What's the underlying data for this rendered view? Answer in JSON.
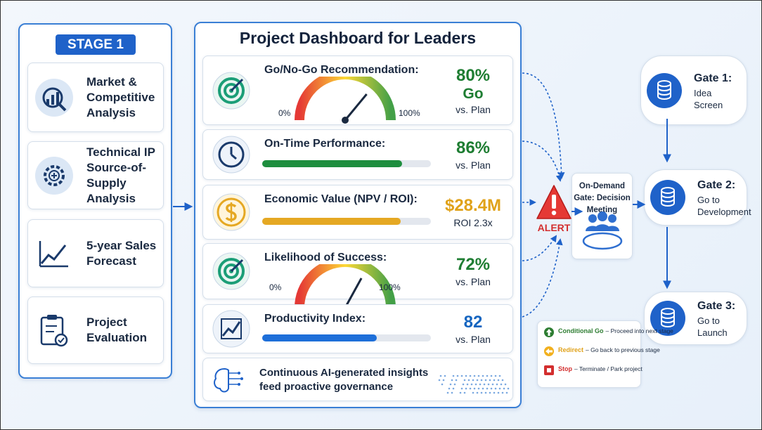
{
  "stage": {
    "badge": "STAGE 1",
    "items": [
      {
        "label": "Market & Competitive Analysis"
      },
      {
        "label": "Technical IP Source-of-Supply Analysis"
      },
      {
        "label": "5-year Sales Forecast"
      },
      {
        "label": "Project Evaluation"
      }
    ]
  },
  "dashboard": {
    "title": "Project Dashboard for Leaders",
    "metrics": [
      {
        "label": "Go/No-Go Recommendation:",
        "value": "80%",
        "status": "Go",
        "note": "vs. Plan",
        "scale_min": "0%",
        "scale_max": "100%"
      },
      {
        "label": "On-Time Performance:",
        "value": "86%",
        "note": "vs. Plan"
      },
      {
        "label": "Economic Value (NPV / ROI):",
        "value": "$28.4M",
        "note": "ROI 2.3x"
      },
      {
        "label": "Likelihood of Success:",
        "value": "72%",
        "note": "vs. Plan",
        "scale_min": "0%",
        "scale_max": "100%"
      },
      {
        "label": "Productivity Index:",
        "value": "82",
        "note": "vs. Plan"
      }
    ],
    "insight": "Continuous AI-generated insights feed proactive governance"
  },
  "alert": "ALERT",
  "meeting": {
    "title": "On-Demand Gate: Decision Meeting"
  },
  "gates": [
    {
      "title": "Gate 1:",
      "subtitle": "Idea Screen"
    },
    {
      "title": "Gate 2:",
      "subtitle": "Go to Development"
    },
    {
      "title": "Gate 3:",
      "subtitle": "Go to Launch"
    }
  ],
  "legend": [
    {
      "term": "Conditional Go",
      "desc": "– Proceed into next stage"
    },
    {
      "term": "Redirect",
      "desc": "– Go back to previous stage"
    },
    {
      "term": "Stop",
      "desc": "– Terminate / Park project"
    }
  ]
}
